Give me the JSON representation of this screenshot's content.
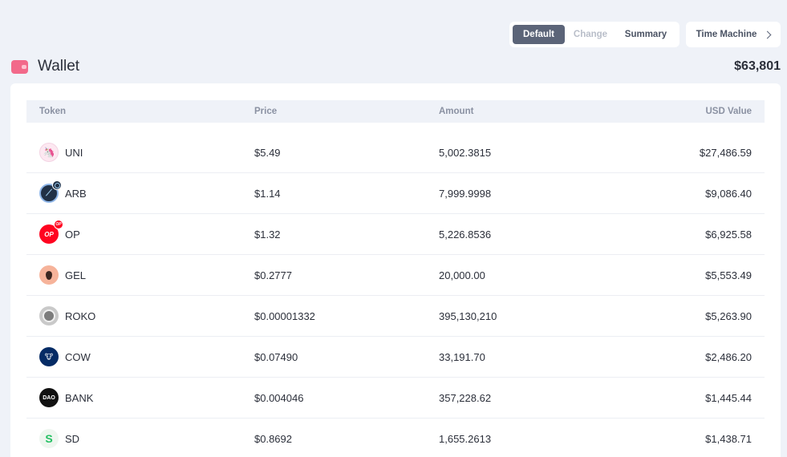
{
  "view_toggle": {
    "default_label": "Default",
    "change_label": "Change",
    "summary_label": "Summary"
  },
  "time_machine_label": "Time Machine",
  "header": {
    "title": "Wallet",
    "total": "$63,801"
  },
  "table": {
    "columns": {
      "token": "Token",
      "price": "Price",
      "amount": "Amount",
      "value": "USD Value"
    },
    "rows": [
      {
        "symbol": "UNI",
        "price": "$5.49",
        "amount": "5,002.3815",
        "value": "$27,486.59",
        "icon": "uniswap-icon",
        "glyph": "🦄"
      },
      {
        "symbol": "ARB",
        "price": "$1.14",
        "amount": "7,999.9998",
        "value": "$9,086.40",
        "icon": "arbitrum-icon",
        "glyph": "⟋"
      },
      {
        "symbol": "OP",
        "price": "$1.32",
        "amount": "5,226.8536",
        "value": "$6,925.58",
        "icon": "optimism-icon",
        "glyph": "OP",
        "badge": "OP"
      },
      {
        "symbol": "GEL",
        "price": "$0.2777",
        "amount": "20,000.00",
        "value": "$5,553.49",
        "icon": "gelato-icon",
        "glyph": ""
      },
      {
        "symbol": "ROKO",
        "price": "$0.00001332",
        "amount": "395,130,210",
        "value": "$5,263.90",
        "icon": "roko-icon",
        "glyph": ""
      },
      {
        "symbol": "COW",
        "price": "$0.07490",
        "amount": "33,191.70",
        "value": "$2,486.20",
        "icon": "cow-icon",
        "glyph": "🐮"
      },
      {
        "symbol": "BANK",
        "price": "$0.004046",
        "amount": "357,228.62",
        "value": "$1,445.44",
        "icon": "bankless-dao-icon",
        "glyph": "DAO"
      },
      {
        "symbol": "SD",
        "price": "$0.8692",
        "amount": "1,655.2613",
        "value": "$1,438.71",
        "icon": "stader-icon",
        "glyph": "S"
      }
    ]
  },
  "colors": {
    "background": "#eff2f8",
    "toggle_active": "#5b6478",
    "wallet_icon": "#f2698a"
  }
}
